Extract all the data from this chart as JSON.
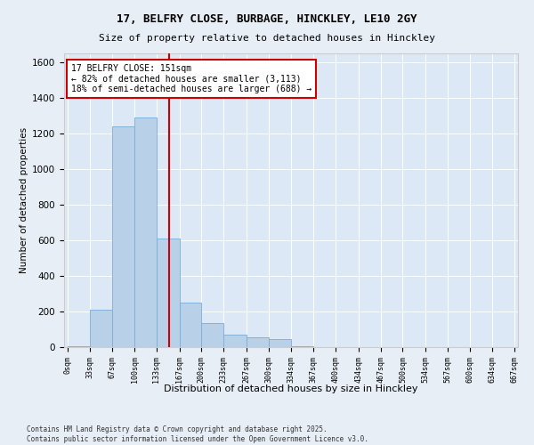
{
  "title1": "17, BELFRY CLOSE, BURBAGE, HINCKLEY, LE10 2GY",
  "title2": "Size of property relative to detached houses in Hinckley",
  "xlabel": "Distribution of detached houses by size in Hinckley",
  "ylabel": "Number of detached properties",
  "bar_color": "#b8d0e8",
  "bar_edge_color": "#7aadd4",
  "vline_color": "#cc0000",
  "vline_x": 4,
  "bin_edges": [
    0,
    33,
    67,
    100,
    133,
    167,
    200,
    233,
    267,
    300,
    334,
    367,
    400,
    434,
    467,
    500,
    534,
    567,
    600,
    634,
    667
  ],
  "bar_heights": [
    5,
    210,
    1240,
    1290,
    610,
    250,
    135,
    70,
    55,
    45,
    5,
    0,
    0,
    0,
    0,
    0,
    0,
    0,
    0,
    0
  ],
  "annotation_text": "17 BELFRY CLOSE: 151sqm\n← 82% of detached houses are smaller (3,113)\n18% of semi-detached houses are larger (688) →",
  "annotation_box_color": "#ffffff",
  "annotation_border_color": "#cc0000",
  "footnote1": "Contains HM Land Registry data © Crown copyright and database right 2025.",
  "footnote2": "Contains public sector information licensed under the Open Government Licence v3.0.",
  "bg_color": "#e8eef5",
  "plot_bg_color": "#dce8f5",
  "ylim": [
    0,
    1650
  ],
  "yticks": [
    0,
    200,
    400,
    600,
    800,
    1000,
    1200,
    1400,
    1600
  ],
  "tick_labels": [
    "0sqm",
    "33sqm",
    "67sqm",
    "100sqm",
    "133sqm",
    "167sqm",
    "200sqm",
    "233sqm",
    "267sqm",
    "300sqm",
    "334sqm",
    "367sqm",
    "400sqm",
    "434sqm",
    "467sqm",
    "500sqm",
    "534sqm",
    "567sqm",
    "600sqm",
    "634sqm",
    "667sqm"
  ]
}
